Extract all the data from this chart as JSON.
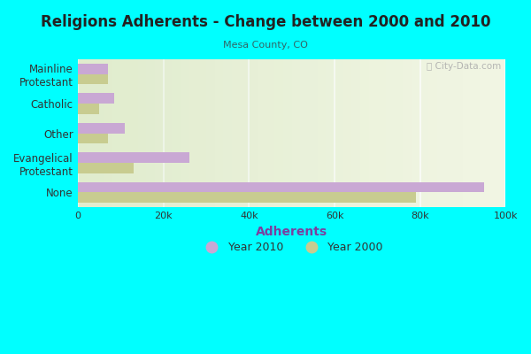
{
  "title": "Religions Adherents - Change between 2000 and 2010",
  "subtitle": "Mesa County, CO",
  "xlabel": "Adherents",
  "background_color": "#00FFFF",
  "plot_bg_left": "#d8e8c8",
  "plot_bg_right": "#f8faf2",
  "categories": [
    "None",
    "Evangelical\nProtestant",
    "Other",
    "Catholic",
    "Mainline\nProtestant"
  ],
  "values_2010": [
    95000,
    26000,
    11000,
    8500,
    7000
  ],
  "values_2000": [
    79000,
    13000,
    7000,
    5000,
    7000
  ],
  "color_2010": "#c9a8d4",
  "color_2000": "#c8cc90",
  "xlim": [
    0,
    100000
  ],
  "xtick_labels": [
    "0",
    "20k",
    "40k",
    "60k",
    "80k",
    "100k"
  ],
  "xtick_values": [
    0,
    20000,
    40000,
    60000,
    80000,
    100000
  ],
  "legend_label_2010": "Year 2010",
  "legend_label_2000": "Year 2000",
  "watermark": "ⓘ City-Data.com",
  "title_color": "#222222",
  "subtitle_color": "#336666",
  "xlabel_color": "#7a3fa0"
}
